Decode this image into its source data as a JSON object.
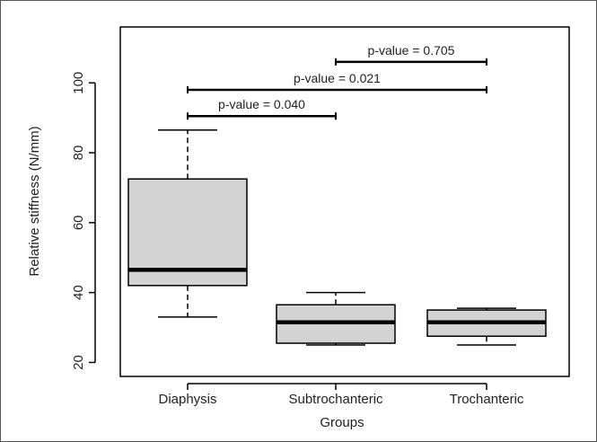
{
  "chart_data": {
    "type": "box",
    "xlabel": "Groups",
    "ylabel": "Relative stiffness (N/mm)",
    "ylim": [
      16,
      116
    ],
    "yticks": [
      20,
      40,
      60,
      80,
      100
    ],
    "categories": [
      "Diaphysis",
      "Subtrochanteric",
      "Trochanteric"
    ],
    "boxes": [
      {
        "category": "Diaphysis",
        "min": 33,
        "q1": 42,
        "median": 46.5,
        "q3": 72.5,
        "max": 86.5
      },
      {
        "category": "Subtrochanteric",
        "min": 25,
        "q1": 25.5,
        "median": 31.5,
        "q3": 36.5,
        "max": 40
      },
      {
        "category": "Trochanteric",
        "min": 25,
        "q1": 27.5,
        "median": 31.5,
        "q3": 35,
        "max": 35.5
      }
    ],
    "comparisons": [
      {
        "from": "Diaphysis",
        "to": "Subtrochanteric",
        "y": 90.5,
        "label": "p-value = 0.040"
      },
      {
        "from": "Diaphysis",
        "to": "Trochanteric",
        "y": 98,
        "label": "p-value = 0.021"
      },
      {
        "from": "Subtrochanteric",
        "to": "Trochanteric",
        "y": 106,
        "label": "p-value = 0.705"
      }
    ],
    "colors": {
      "box_fill": "#d3d3d3",
      "stroke": "#000000"
    }
  }
}
